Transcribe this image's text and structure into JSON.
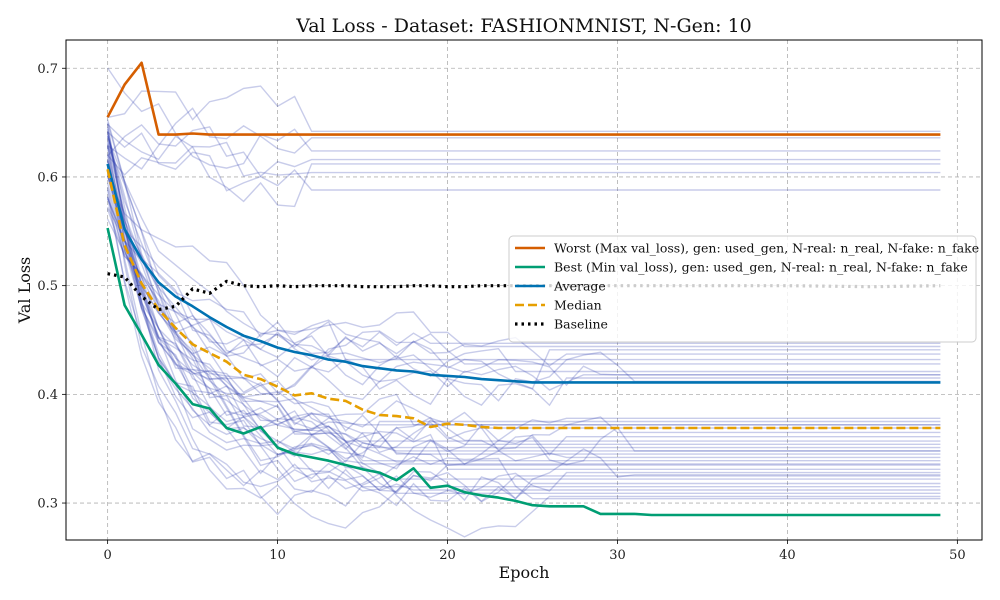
{
  "chart_data": {
    "type": "line",
    "title": "Val Loss - Dataset: FASHIONMNIST, N-Gen: 10",
    "xlabel": "Epoch",
    "ylabel": "Val Loss",
    "xlim": [
      -2.45,
      51.45
    ],
    "ylim": [
      0.266,
      0.726
    ],
    "xticks": [
      0,
      10,
      20,
      30,
      40,
      50
    ],
    "yticks": [
      0.3,
      0.4,
      0.5,
      0.6,
      0.7
    ],
    "ytick_labels": [
      "0.3",
      "0.4",
      "0.5",
      "0.6",
      "0.7"
    ],
    "grid": true,
    "legend_position": "center-right",
    "background_runs": {
      "color": "#2233aa",
      "count": 46,
      "plateaus": [
        0.642,
        0.636,
        0.624,
        0.616,
        0.612,
        0.604,
        0.588,
        0.447,
        0.444,
        0.441,
        0.437,
        0.432,
        0.428,
        0.421,
        0.418,
        0.415,
        0.412,
        0.378,
        0.375,
        0.372,
        0.369,
        0.365,
        0.361,
        0.357,
        0.354,
        0.351,
        0.348,
        0.345,
        0.342,
        0.339,
        0.335,
        0.331,
        0.328,
        0.325,
        0.322,
        0.318,
        0.315,
        0.312,
        0.309,
        0.306,
        0.304,
        0.372,
        0.348,
        0.336,
        0.418,
        0.326
      ]
    },
    "series": [
      {
        "name": "Worst (Max val_loss), gen: used_gen, N-real: n_real, N-fake: n_fake",
        "color": "#d55e00",
        "style": "solid",
        "x": [
          0,
          1,
          2,
          3,
          4,
          5,
          6,
          7,
          8,
          9,
          10,
          15,
          20,
          25,
          30,
          35,
          40,
          45,
          49
        ],
        "y": [
          0.655,
          0.685,
          0.705,
          0.639,
          0.639,
          0.64,
          0.639,
          0.639,
          0.639,
          0.639,
          0.639,
          0.639,
          0.639,
          0.639,
          0.639,
          0.639,
          0.639,
          0.639,
          0.639
        ]
      },
      {
        "name": "Best (Min val_loss), gen: used_gen, N-real: n_real, N-fake: n_fake",
        "color": "#009e73",
        "style": "solid",
        "x": [
          0,
          1,
          2,
          3,
          4,
          5,
          6,
          7,
          8,
          9,
          10,
          11,
          12,
          13,
          14,
          15,
          16,
          17,
          18,
          19,
          20,
          21,
          22,
          23,
          24,
          25,
          26,
          27,
          28,
          29,
          30,
          31,
          32,
          33,
          35,
          40,
          45,
          49
        ],
        "y": [
          0.553,
          0.482,
          0.455,
          0.427,
          0.41,
          0.391,
          0.387,
          0.369,
          0.364,
          0.37,
          0.351,
          0.345,
          0.342,
          0.339,
          0.335,
          0.331,
          0.328,
          0.321,
          0.332,
          0.314,
          0.316,
          0.31,
          0.307,
          0.305,
          0.302,
          0.298,
          0.297,
          0.297,
          0.297,
          0.29,
          0.29,
          0.29,
          0.289,
          0.289,
          0.289,
          0.289,
          0.289,
          0.289
        ]
      },
      {
        "name": "Average",
        "color": "#0072b2",
        "style": "solid",
        "x": [
          0,
          1,
          2,
          3,
          4,
          5,
          6,
          7,
          8,
          9,
          10,
          11,
          12,
          13,
          14,
          15,
          16,
          17,
          18,
          19,
          20,
          21,
          22,
          23,
          24,
          25,
          26,
          27,
          28,
          30,
          35,
          40,
          45,
          49
        ],
        "y": [
          0.612,
          0.552,
          0.524,
          0.503,
          0.49,
          0.481,
          0.471,
          0.462,
          0.454,
          0.449,
          0.443,
          0.439,
          0.436,
          0.432,
          0.43,
          0.426,
          0.424,
          0.422,
          0.421,
          0.418,
          0.417,
          0.416,
          0.414,
          0.413,
          0.412,
          0.411,
          0.411,
          0.411,
          0.411,
          0.411,
          0.411,
          0.411,
          0.411,
          0.411
        ]
      },
      {
        "name": "Median",
        "color": "#e69f00",
        "style": "dashed",
        "x": [
          0,
          1,
          2,
          3,
          4,
          5,
          6,
          7,
          8,
          9,
          10,
          11,
          12,
          13,
          14,
          15,
          16,
          17,
          18,
          19,
          20,
          21,
          22,
          23,
          24,
          25,
          30,
          35,
          40,
          45,
          49
        ],
        "y": [
          0.607,
          0.537,
          0.502,
          0.478,
          0.461,
          0.446,
          0.438,
          0.43,
          0.418,
          0.414,
          0.407,
          0.399,
          0.401,
          0.396,
          0.394,
          0.386,
          0.381,
          0.38,
          0.378,
          0.37,
          0.373,
          0.372,
          0.37,
          0.369,
          0.369,
          0.369,
          0.369,
          0.369,
          0.369,
          0.369,
          0.369
        ]
      },
      {
        "name": "Baseline",
        "color": "#000000",
        "style": "dotted",
        "x": [
          0,
          1,
          2,
          3,
          4,
          5,
          6,
          7,
          8,
          9,
          10,
          11,
          12,
          13,
          14,
          15,
          16,
          17,
          18,
          19,
          20,
          21,
          22,
          23,
          24,
          25,
          30,
          35,
          40,
          45,
          49
        ],
        "y": [
          0.511,
          0.508,
          0.49,
          0.478,
          0.481,
          0.497,
          0.493,
          0.504,
          0.5,
          0.499,
          0.5,
          0.499,
          0.5,
          0.5,
          0.5,
          0.499,
          0.499,
          0.499,
          0.5,
          0.5,
          0.499,
          0.499,
          0.5,
          0.5,
          0.5,
          0.5,
          0.5,
          0.5,
          0.5,
          0.499,
          0.5
        ]
      }
    ]
  }
}
